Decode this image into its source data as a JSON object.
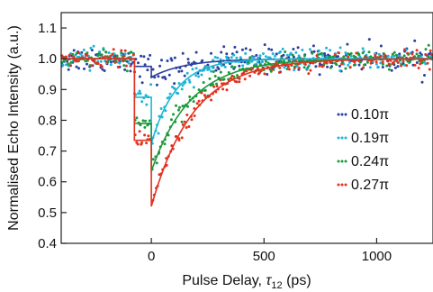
{
  "chart_data": {
    "type": "scatter",
    "xlabel_main": "Pulse Delay, ",
    "xlabel_var": "τ",
    "xlabel_sub": "12",
    "xlabel_unit": " (ps)",
    "ylabel": "Normalised Echo Intensity (a.u.)",
    "xlim": [
      -400,
      1250
    ],
    "ylim": [
      0.4,
      1.15
    ],
    "x_ticks": [
      0,
      500,
      1000
    ],
    "x_tick_labels": [
      "0",
      "500",
      "1000"
    ],
    "y_ticks": [
      0.4,
      0.5,
      0.6,
      0.7,
      0.8,
      0.9,
      1.0,
      1.1
    ],
    "y_tick_labels": [
      "0.4",
      "0.5",
      "0.6",
      "0.7",
      "0.8",
      "0.9",
      "1.0",
      "1.1"
    ],
    "legend_position": "right",
    "series": [
      {
        "name": "0.10π",
        "color": "#2b3f9e",
        "dip": 0.94,
        "step": 0.975,
        "tau": 150,
        "noise": 0.022,
        "n": 240
      },
      {
        "name": "0.19π",
        "color": "#1fb5d6",
        "dip": 0.725,
        "step": 0.875,
        "tau": 110,
        "noise": 0.015,
        "n": 240
      },
      {
        "name": "0.24π",
        "color": "#1a9a3a",
        "dip": 0.635,
        "step": 0.79,
        "tau": 175,
        "noise": 0.014,
        "n": 240
      },
      {
        "name": "0.27π",
        "color": "#e2321f",
        "dip": 0.52,
        "step": 0.735,
        "tau": 185,
        "noise": 0.013,
        "n": 240
      }
    ]
  }
}
